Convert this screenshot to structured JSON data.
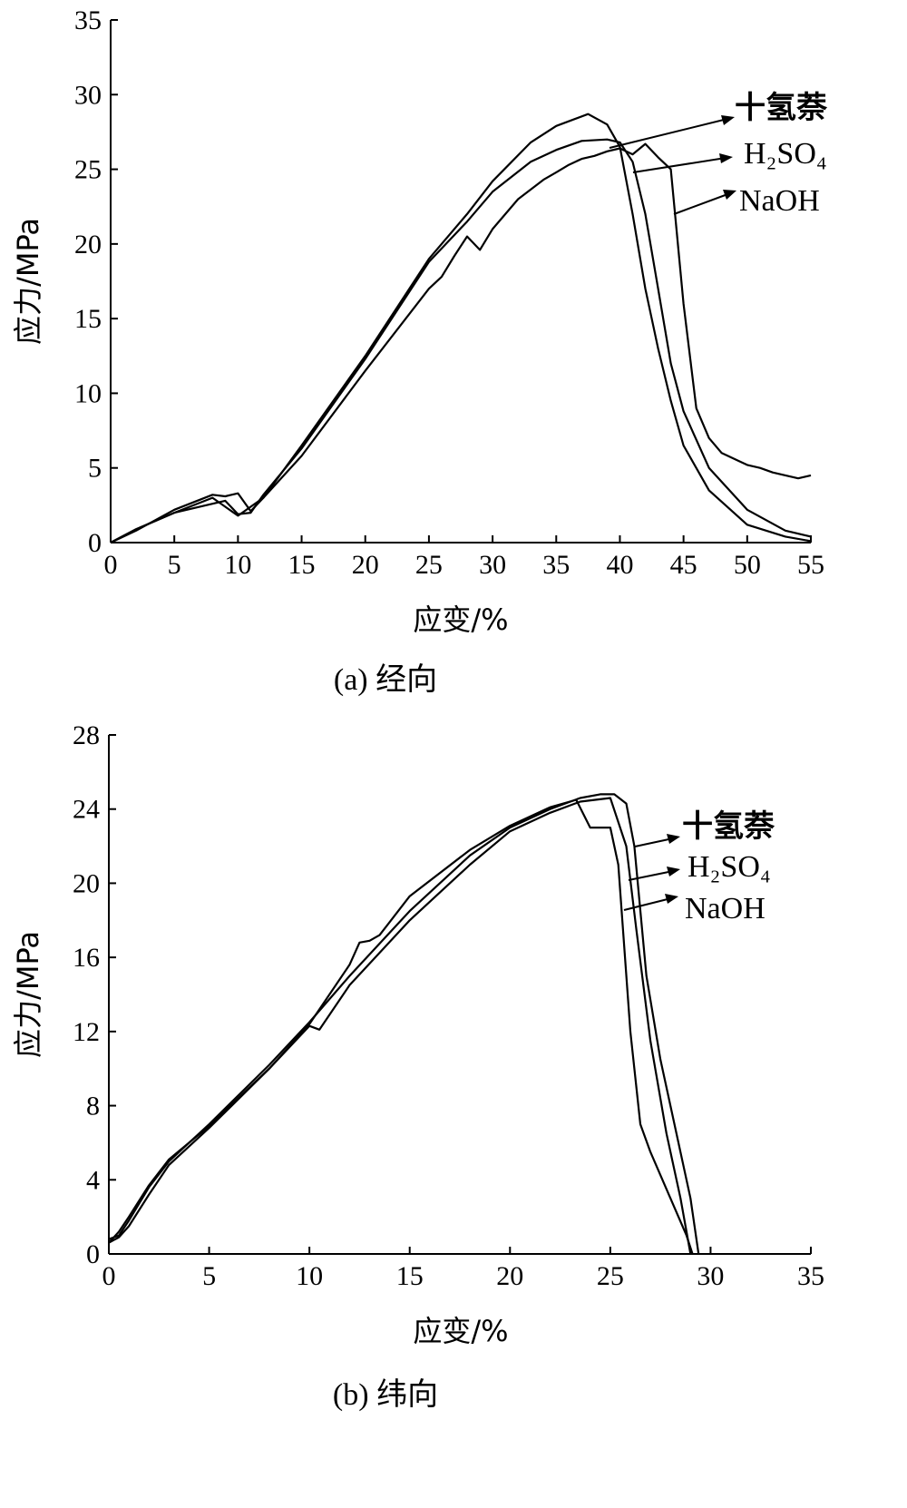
{
  "chart_data": [
    {
      "type": "line",
      "caption": "(a) 经向",
      "xlabel": "应变/%",
      "ylabel": "应力/MPa",
      "xlim": [
        0,
        55
      ],
      "ylim": [
        0,
        35
      ],
      "xticks": [
        0,
        5,
        10,
        15,
        20,
        25,
        30,
        35,
        40,
        45,
        50,
        55
      ],
      "yticks": [
        0,
        5,
        10,
        15,
        20,
        25,
        30,
        35
      ],
      "series": [
        {
          "name": "十氢萘",
          "x": [
            0,
            2,
            5,
            8,
            10,
            12,
            15,
            20,
            25,
            28,
            30,
            33,
            35,
            37.5,
            39,
            40,
            41,
            42,
            43,
            44,
            45,
            47,
            50,
            53,
            55
          ],
          "y": [
            0,
            0.9,
            2.0,
            3.0,
            1.8,
            3.0,
            6.5,
            12.5,
            19.0,
            22.0,
            24.2,
            26.8,
            27.9,
            28.7,
            28.0,
            26.5,
            22.0,
            17.0,
            13.0,
            9.5,
            6.5,
            3.5,
            1.2,
            0.4,
            0.1
          ]
        },
        {
          "name": "H₂SO₄",
          "x": [
            0,
            2,
            5,
            8,
            9,
            10,
            11,
            12,
            15,
            20,
            25,
            28,
            30,
            33,
            35,
            37,
            39,
            40,
            41,
            42,
            43,
            44,
            45,
            47,
            50,
            53,
            55
          ],
          "y": [
            0,
            0.9,
            2.0,
            2.6,
            2.8,
            1.9,
            2.0,
            3.2,
            6.3,
            12.3,
            18.8,
            21.5,
            23.5,
            25.5,
            26.3,
            26.9,
            27.0,
            26.8,
            25.5,
            22.0,
            17.0,
            12.0,
            8.8,
            5.0,
            2.2,
            0.8,
            0.4
          ]
        },
        {
          "name": "NaOH",
          "x": [
            0,
            2,
            5,
            8,
            9,
            10,
            11,
            12,
            15,
            20,
            25,
            26,
            27,
            28,
            29,
            30,
            32,
            34,
            35,
            36,
            37,
            38,
            39,
            40,
            41,
            42,
            43,
            44,
            45,
            46,
            47,
            48,
            50,
            51,
            52,
            53,
            54,
            55
          ],
          "y": [
            0,
            0.8,
            2.2,
            3.2,
            3.1,
            3.3,
            2.1,
            3.0,
            5.8,
            11.5,
            17.0,
            17.8,
            19.2,
            20.5,
            19.6,
            21.0,
            23.0,
            24.3,
            24.8,
            25.3,
            25.7,
            25.9,
            26.2,
            26.4,
            26.0,
            26.7,
            25.8,
            25.0,
            16.0,
            9.0,
            7.0,
            6.0,
            5.2,
            5.0,
            4.7,
            4.5,
            4.3,
            4.5
          ]
        }
      ],
      "legend": [
        "十氢萘",
        "H₂SO₄",
        "NaOH"
      ]
    },
    {
      "type": "line",
      "caption": "(b) 纬向",
      "xlabel": "应变/%",
      "ylabel": "应力/MPa",
      "xlim": [
        0,
        35
      ],
      "ylim": [
        0,
        28
      ],
      "xticks": [
        0,
        5,
        10,
        15,
        20,
        25,
        30,
        35
      ],
      "yticks": [
        0,
        4,
        8,
        12,
        16,
        20,
        24,
        28
      ],
      "series": [
        {
          "name": "十氢萘",
          "x": [
            0,
            0.5,
            1,
            2,
            3,
            5,
            8,
            10,
            12,
            15,
            18,
            20,
            22,
            23.5,
            24.5,
            25.2,
            25.8,
            26.2,
            26.8,
            27.5,
            28.2,
            29.0,
            29.4
          ],
          "y": [
            0.8,
            1.0,
            1.8,
            3.6,
            5.0,
            7.0,
            10.2,
            12.5,
            15.0,
            18.5,
            21.5,
            23.0,
            24.0,
            24.6,
            24.8,
            24.8,
            24.3,
            22.0,
            15.0,
            10.5,
            7.0,
            3.0,
            0
          ]
        },
        {
          "name": "H₂SO₄",
          "x": [
            0,
            0.5,
            1,
            2,
            3,
            5,
            8,
            10,
            10.5,
            12,
            15,
            18,
            20,
            22,
            23.5,
            25,
            25.8,
            26.3,
            27,
            27.8,
            28.5,
            29.0
          ],
          "y": [
            0.6,
            0.9,
            1.5,
            3.2,
            4.8,
            6.8,
            10.0,
            12.3,
            12.1,
            14.5,
            18.0,
            21.0,
            22.8,
            23.8,
            24.4,
            24.6,
            22.0,
            17.5,
            11.5,
            6.5,
            3.0,
            0
          ]
        },
        {
          "name": "NaOH",
          "x": [
            0,
            0.5,
            1,
            2,
            3,
            5,
            8,
            10,
            12,
            12.5,
            13,
            13.5,
            15,
            18,
            20,
            22,
            23.3,
            24.0,
            25.0,
            25.4,
            26.0,
            26.5,
            27.0,
            28.0,
            28.8,
            29.1
          ],
          "y": [
            0.6,
            1.2,
            2.0,
            3.7,
            5.1,
            6.9,
            10.0,
            12.4,
            15.6,
            16.8,
            16.9,
            17.2,
            19.3,
            21.8,
            23.1,
            24.1,
            24.5,
            23.0,
            23.0,
            21.0,
            12.0,
            7.0,
            5.5,
            3.0,
            1.0,
            0
          ]
        }
      ],
      "legend": [
        "十氢萘",
        "H₂SO₄",
        "NaOH"
      ]
    }
  ]
}
